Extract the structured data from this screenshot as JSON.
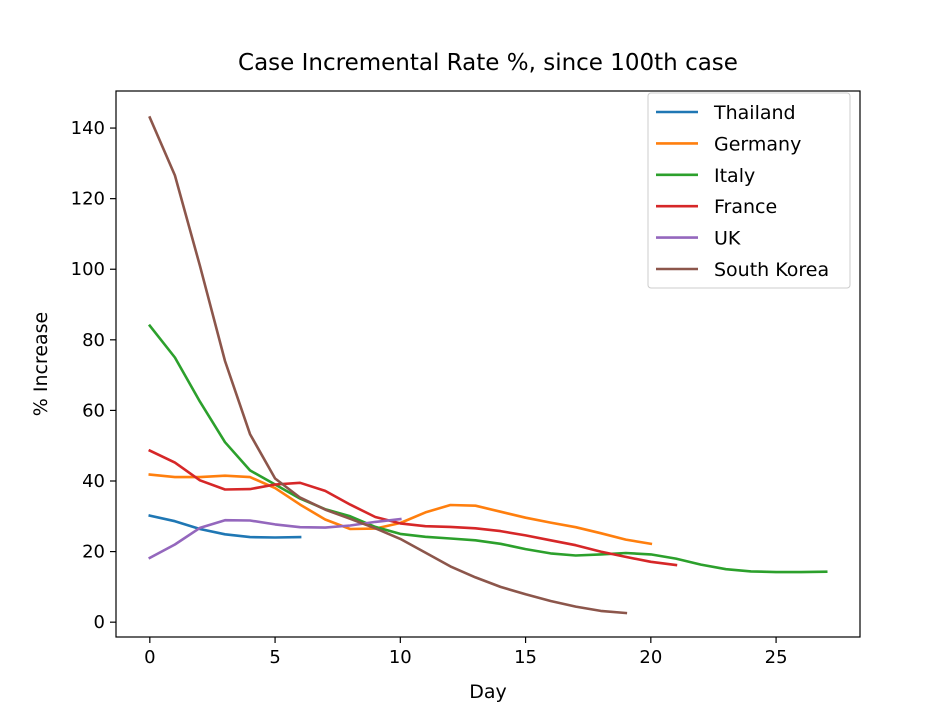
{
  "chart_data": {
    "type": "line",
    "title": "Case Incremental Rate %, since 100th case",
    "xlabel": "Day",
    "ylabel": "% Increase",
    "xlim": [
      -1.35,
      28.35
    ],
    "ylim": [
      -4.2,
      150.5
    ],
    "xticks": [
      0,
      5,
      10,
      15,
      20,
      25
    ],
    "yticks": [
      0,
      20,
      40,
      60,
      80,
      100,
      120,
      140
    ],
    "grid": false,
    "legend_position": "top-right",
    "series": [
      {
        "name": "Thailand",
        "color": "#1f77b4",
        "x": [
          0,
          1,
          2,
          3,
          4,
          5,
          6
        ],
        "y": [
          30.2,
          28.6,
          26.4,
          24.9,
          24.1,
          24.0,
          24.1
        ]
      },
      {
        "name": "Germany",
        "color": "#ff7f0e",
        "x": [
          0,
          1,
          2,
          3,
          4,
          5,
          6,
          7,
          8,
          9,
          10,
          11,
          12,
          13,
          14,
          15,
          16,
          17,
          18,
          19,
          20
        ],
        "y": [
          41.8,
          41.1,
          41.1,
          41.5,
          41.1,
          38.0,
          33.3,
          29.1,
          26.4,
          26.5,
          28.1,
          31.1,
          33.2,
          33.0,
          31.3,
          29.6,
          28.2,
          26.9,
          25.2,
          23.4,
          22.2
        ]
      },
      {
        "name": "Italy",
        "color": "#2ca02c",
        "x": [
          0,
          1,
          2,
          3,
          4,
          5,
          6,
          7,
          8,
          9,
          10,
          11,
          12,
          13,
          14,
          15,
          16,
          17,
          18,
          19,
          20,
          21,
          22,
          23,
          24,
          25,
          26,
          27
        ],
        "y": [
          84.0,
          75.0,
          62.5,
          51.0,
          43.0,
          39.0,
          35.0,
          32.0,
          30.0,
          27.0,
          25.0,
          24.2,
          23.7,
          23.2,
          22.2,
          20.7,
          19.5,
          18.9,
          19.2,
          19.6,
          19.2,
          18.0,
          16.3,
          15.0,
          14.4,
          14.2,
          14.2,
          14.3
        ]
      },
      {
        "name": "France",
        "color": "#d62728",
        "x": [
          0,
          1,
          2,
          3,
          4,
          5,
          6,
          7,
          8,
          9,
          10,
          11,
          12,
          13,
          14,
          15,
          16,
          17,
          18,
          19,
          20,
          21
        ],
        "y": [
          48.6,
          45.2,
          40.2,
          37.6,
          37.7,
          39.0,
          39.5,
          37.2,
          33.3,
          29.8,
          28.0,
          27.2,
          27.0,
          26.6,
          25.8,
          24.6,
          23.2,
          21.8,
          20.0,
          18.5,
          17.1,
          16.2
        ]
      },
      {
        "name": "UK",
        "color": "#9467bd",
        "x": [
          0,
          1,
          2,
          3,
          4,
          5,
          6,
          7,
          8,
          9,
          10
        ],
        "y": [
          18.2,
          22.0,
          26.7,
          28.9,
          28.8,
          27.7,
          26.9,
          26.8,
          27.4,
          28.4,
          29.2
        ]
      },
      {
        "name": "South Korea",
        "color": "#8c564b",
        "x": [
          0,
          1,
          2,
          3,
          4,
          5,
          6,
          7,
          8,
          9,
          10,
          11,
          12,
          13,
          14,
          15,
          16,
          17,
          18,
          19
        ],
        "y": [
          143.0,
          126.6,
          101.0,
          74.0,
          53.3,
          40.7,
          35.3,
          31.9,
          29.3,
          26.6,
          23.6,
          19.7,
          15.8,
          12.7,
          10.0,
          7.9,
          6.0,
          4.4,
          3.2,
          2.6
        ]
      }
    ]
  }
}
